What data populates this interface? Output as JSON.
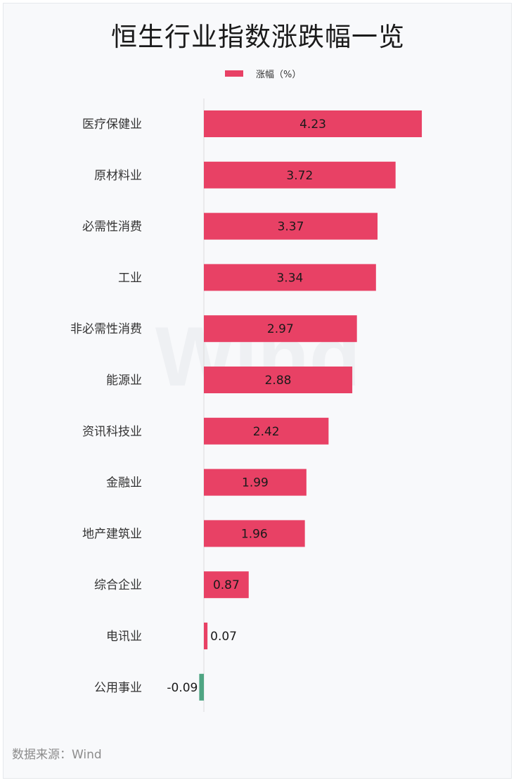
{
  "title": "恒生行业指数涨跌幅一览",
  "legend": {
    "label": "涨幅（%）"
  },
  "source": "数据来源：Wind",
  "watermark": "Wind",
  "colors": {
    "positive": "#e84165",
    "negative": "#4fa583"
  },
  "chart_data": {
    "type": "bar",
    "orientation": "horizontal",
    "categories": [
      "医疗保健业",
      "原材料业",
      "必需性消费",
      "工业",
      "非必需性消费",
      "能源业",
      "资讯科技业",
      "金融业",
      "地产建筑业",
      "综合企业",
      "电讯业",
      "公用事业"
    ],
    "series": [
      {
        "name": "涨幅（%）",
        "values": [
          4.23,
          3.72,
          3.37,
          3.34,
          2.97,
          2.88,
          2.42,
          1.99,
          1.96,
          0.87,
          0.07,
          -0.09
        ]
      }
    ],
    "grid": false,
    "legend_position": "top"
  }
}
